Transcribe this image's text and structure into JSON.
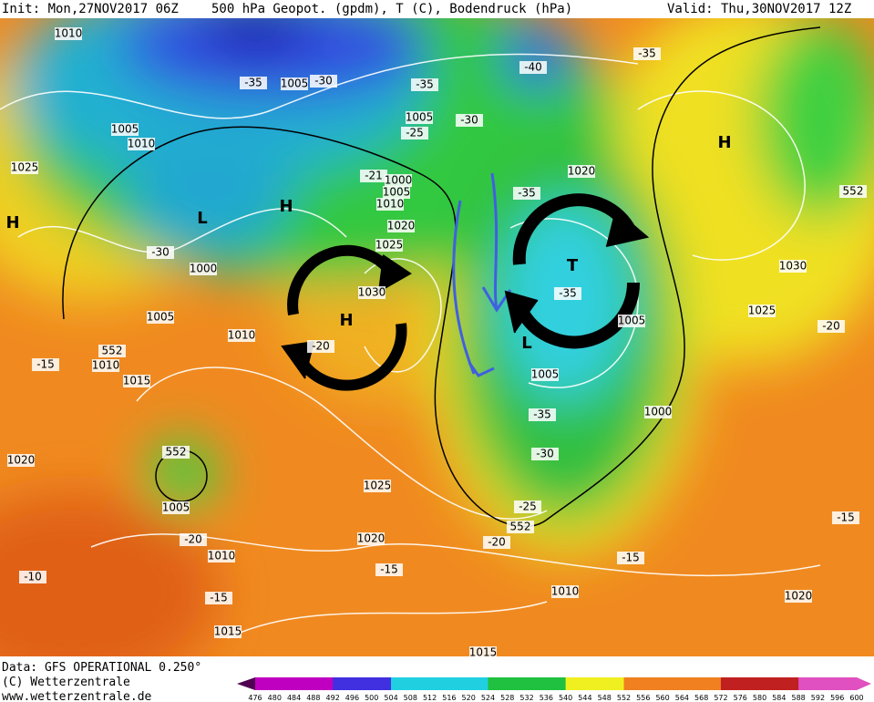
{
  "header": {
    "init": "Init: Mon,27NOV2017 06Z",
    "title": "500 hPa Geopot. (gpdm), T (C), Bodendruck (hPa)",
    "valid": "Valid: Thu,30NOV2017 12Z"
  },
  "footer": {
    "source": "Data: GFS OPERATIONAL 0.250°",
    "copyright": "(C) Wetterzentrale",
    "url": "www.wetterzentrale.de"
  },
  "colorbar": {
    "labels": [
      "476",
      "480",
      "484",
      "488",
      "492",
      "496",
      "500",
      "504",
      "508",
      "512",
      "516",
      "520",
      "524",
      "528",
      "532",
      "536",
      "540",
      "544",
      "548",
      "552",
      "556",
      "560",
      "564",
      "568",
      "572",
      "576",
      "580",
      "584",
      "588",
      "592",
      "596",
      "600"
    ]
  },
  "map": {
    "labels": [
      "1010",
      "1005",
      "-35",
      "-30",
      "-35",
      "1005",
      "-30",
      "-25",
      "-40",
      "-35",
      "1005",
      "1010",
      "1025",
      "H",
      "L",
      "H",
      "-21",
      "1000",
      "1005",
      "1010",
      "1020",
      "1025",
      "-30",
      "1000",
      "1005",
      "1030",
      "1010",
      "-20",
      "552",
      "1010",
      "-15",
      "1015",
      "1020",
      "552",
      "1005",
      "-20",
      "1010",
      "-10",
      "-15",
      "1015",
      "1025",
      "1020",
      "-15",
      "1020",
      "-35",
      "552",
      "H",
      "T",
      "-35",
      "1005",
      "L",
      "1005",
      "1000",
      "-35",
      "-30",
      "1030",
      "1025",
      "-20",
      "-25",
      "552",
      "-20",
      "-15",
      "1010",
      "1020",
      "-15",
      "1015",
      "H"
    ]
  }
}
